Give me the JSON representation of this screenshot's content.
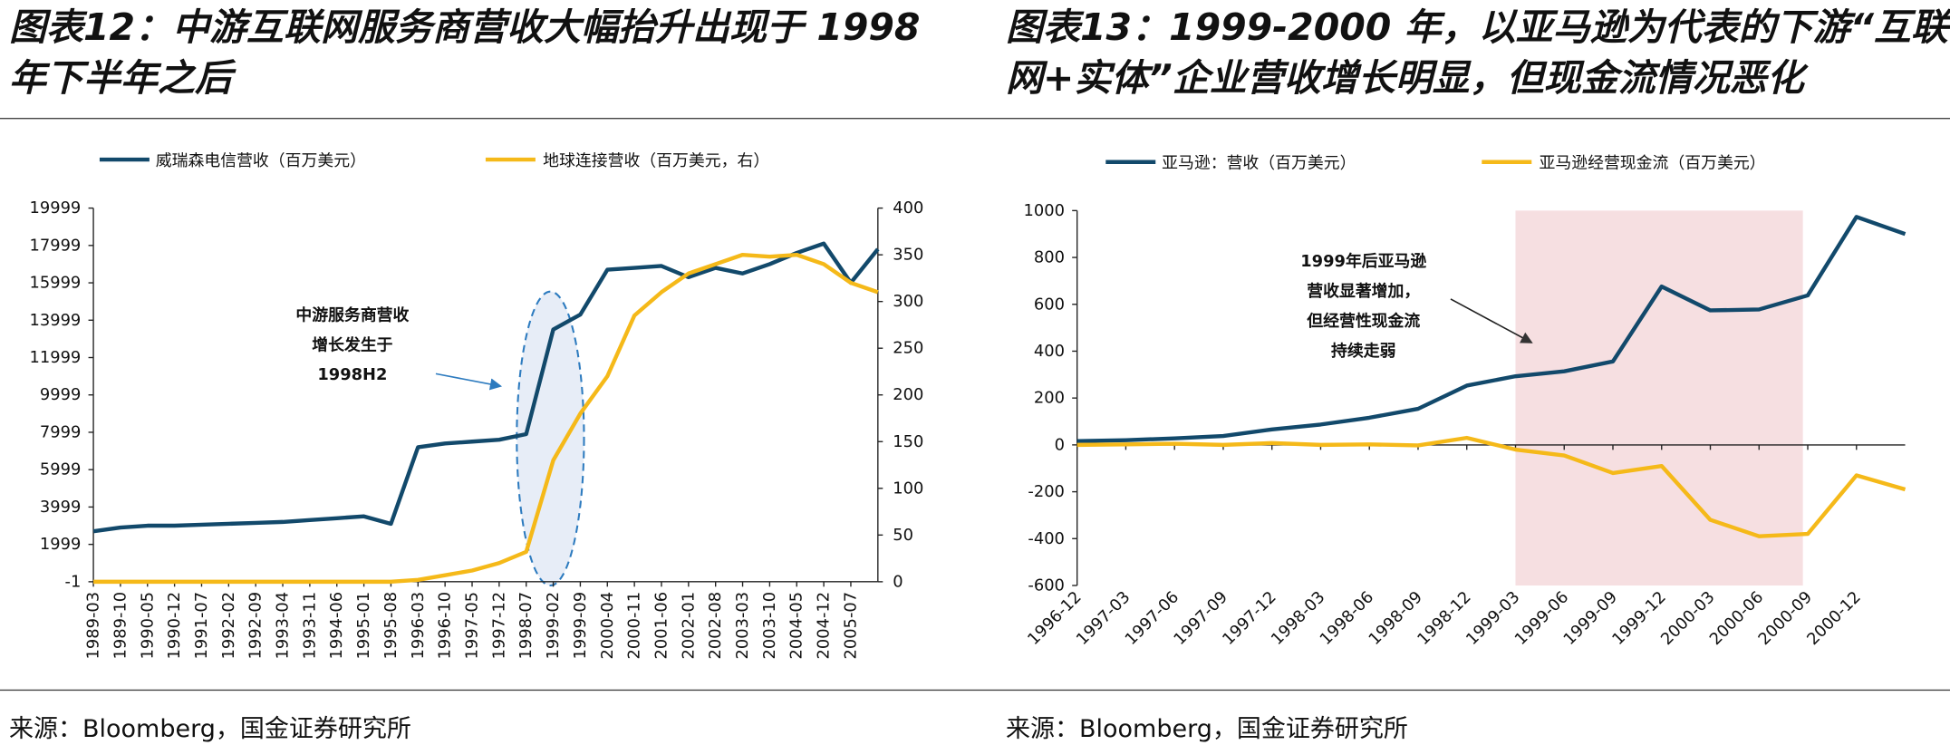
{
  "chart_data": [
    {
      "type": "line",
      "title": "图表12：中游互联网服务商营收大幅抬升出现于 1998 年下半年之后",
      "source": "来源：Bloomberg，国金证券研究所",
      "categories": [
        "1989-03",
        "1989-10",
        "1990-05",
        "1990-12",
        "1991-07",
        "1992-02",
        "1992-09",
        "1993-04",
        "1993-11",
        "1994-06",
        "1995-01",
        "1995-08",
        "1996-03",
        "1996-10",
        "1997-05",
        "1997-12",
        "1998-07",
        "1999-02",
        "1999-09",
        "2000-04",
        "2000-11",
        "2001-06",
        "2002-01",
        "2002-08",
        "2003-03",
        "2003-10",
        "2004-05",
        "2004-12",
        "2005-07",
        null
      ],
      "series": [
        {
          "name": "威瑞森电信营收（百万美元）",
          "color": "#12496b",
          "values": [
            2700,
            2900,
            3000,
            3000,
            3050,
            3100,
            3150,
            3200,
            3300,
            3400,
            3500,
            3100,
            7200,
            7400,
            7500,
            7600,
            7900,
            13500,
            14300,
            16700,
            16800,
            16900,
            16300,
            16800,
            16500,
            17000,
            17600,
            18100,
            16000,
            17800
          ]
        },
        {
          "name": "地球连接营收（百万美元，右）",
          "color": "#f5b919",
          "axis": "y2",
          "values": [
            0,
            0,
            0,
            0,
            0,
            0,
            0,
            0,
            0,
            0,
            0,
            0,
            2,
            7,
            12,
            20,
            32,
            130,
            180,
            220,
            285,
            310,
            330,
            340,
            350,
            348,
            350,
            340,
            320,
            310
          ]
        }
      ],
      "ylim": [
        -1,
        19999
      ],
      "yticks": [
        -1,
        1999,
        3999,
        5999,
        7999,
        9999,
        11999,
        13999,
        15999,
        17999,
        19999
      ],
      "y2lim": [
        0,
        400
      ],
      "y2ticks": [
        0,
        50,
        100,
        150,
        200,
        250,
        300,
        350,
        400
      ],
      "annotation": [
        "中游服务商营收",
        "增长发生于",
        "1998H2"
      ]
    },
    {
      "type": "line",
      "title": "图表13：1999-2000 年，以亚马逊为代表的下游“互联网+实体”企业营收增长明显，但现金流情况恶化",
      "source": "来源：Bloomberg，国金证券研究所",
      "categories": [
        "1996-12",
        "1997-03",
        "1997-06",
        "1997-09",
        "1997-12",
        "1998-03",
        "1998-06",
        "1998-09",
        "1998-12",
        "1999-03",
        "1999-06",
        "1999-09",
        "1999-12",
        "2000-03",
        "2000-06",
        "2000-09",
        "2000-12",
        null
      ],
      "series": [
        {
          "name": "亚马逊：营收（百万美元）",
          "color": "#12496b",
          "values": [
            16,
            20,
            28,
            38,
            66,
            87,
            116,
            154,
            253,
            293,
            314,
            356,
            676,
            574,
            578,
            638,
            973,
            900
          ]
        },
        {
          "name": "亚马逊经营现金流（百万美元）",
          "color": "#f5b919",
          "values": [
            0,
            2,
            5,
            0,
            8,
            0,
            2,
            -2,
            30,
            -20,
            -45,
            -120,
            -90,
            -320,
            -390,
            -380,
            -130,
            -190
          ]
        }
      ],
      "ylim": [
        -600,
        1000
      ],
      "yticks": [
        -600,
        -400,
        -200,
        0,
        200,
        400,
        600,
        800,
        1000
      ],
      "annotation": [
        "1999年后亚马逊",
        "营收显著增加，",
        "但经营性现金流",
        "持续走弱"
      ]
    }
  ]
}
